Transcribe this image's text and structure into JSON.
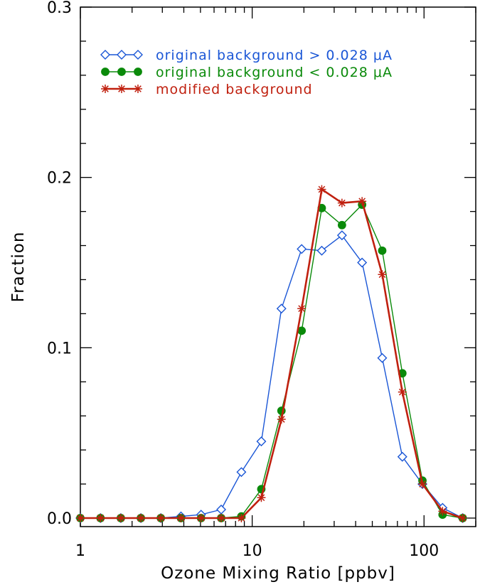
{
  "chart_data": {
    "type": "line",
    "xlabel": "Ozone Mixing Ratio [ppbv]",
    "ylabel": "Fraction",
    "xscale": "log",
    "xlim": [
      1,
      200
    ],
    "ylim": [
      -0.005,
      0.3
    ],
    "xticks": [
      1,
      10,
      100
    ],
    "xtick_labels": [
      "1",
      "10",
      "100"
    ],
    "yticks": [
      0.0,
      0.1,
      0.2,
      0.3
    ],
    "ytick_labels": [
      "0.0",
      "0.1",
      "0.2",
      "0.3"
    ],
    "legend_position": "top-left",
    "grid": false,
    "x": [
      1.0,
      1.31,
      1.72,
      2.25,
      2.94,
      3.85,
      5.04,
      6.6,
      8.65,
      11.3,
      14.8,
      19.4,
      25.4,
      33.3,
      43.6,
      57.1,
      74.8,
      97.9,
      128.2,
      167.9
    ],
    "series": [
      {
        "name": "original background > 0.028 μA",
        "marker": "diamond-open",
        "color": "#1a56d6",
        "values": [
          0.0,
          0.0,
          0.0,
          0.0,
          0.0,
          0.001,
          0.002,
          0.005,
          0.027,
          0.045,
          0.123,
          0.158,
          0.157,
          0.166,
          0.15,
          0.094,
          0.036,
          0.02,
          0.006,
          0.0
        ]
      },
      {
        "name": "original background < 0.028 μA",
        "marker": "circle-filled",
        "color": "#0a8a0a",
        "values": [
          0.0,
          0.0,
          0.0,
          0.0,
          0.0,
          0.0,
          0.0,
          0.0,
          0.001,
          0.017,
          0.063,
          0.11,
          0.182,
          0.172,
          0.184,
          0.157,
          0.085,
          0.022,
          0.002,
          0.0
        ]
      },
      {
        "name": "modified background",
        "marker": "asterisk",
        "color": "#c0200f",
        "values": [
          0.0,
          0.0,
          0.0,
          0.0,
          0.0,
          0.0,
          0.0,
          0.0,
          0.0,
          0.012,
          0.058,
          0.123,
          0.193,
          0.185,
          0.186,
          0.143,
          0.074,
          0.02,
          0.004,
          0.0
        ]
      }
    ]
  }
}
